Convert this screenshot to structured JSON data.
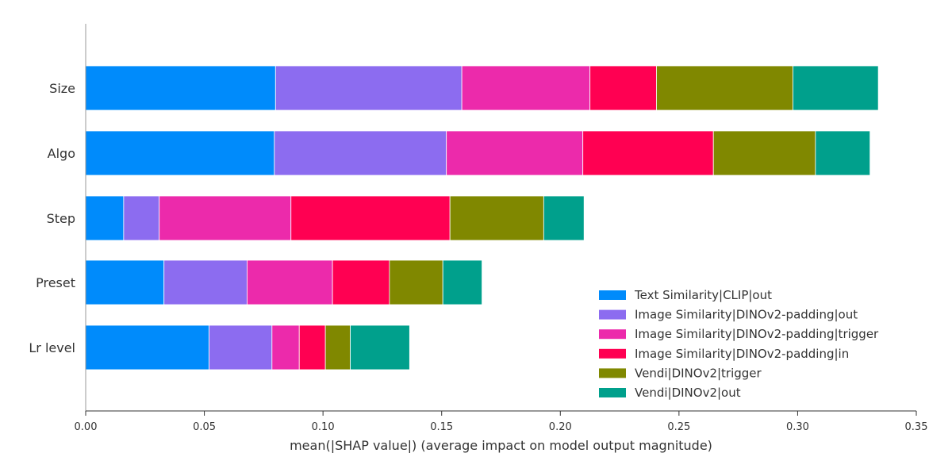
{
  "chart_data": {
    "type": "bar",
    "orientation": "horizontal",
    "stacked": true,
    "categories": [
      "Size",
      "Algo",
      "Step",
      "Preset",
      "Lr level"
    ],
    "series": [
      {
        "name": "Text Similarity|CLIP|out",
        "color": "#008bfb",
        "values": [
          0.08,
          0.0795,
          0.016,
          0.033,
          0.052
        ]
      },
      {
        "name": "Image Similarity|DINOv2-padding|out",
        "color": "#8c6cf0",
        "values": [
          0.0785,
          0.0725,
          0.015,
          0.035,
          0.0265
        ]
      },
      {
        "name": "Image Similarity|DINOv2-padding|trigger",
        "color": "#ec2aab",
        "values": [
          0.054,
          0.0575,
          0.0555,
          0.036,
          0.0115
        ]
      },
      {
        "name": "Image Similarity|DINOv2-padding|in",
        "color": "#ff0052",
        "values": [
          0.028,
          0.055,
          0.067,
          0.024,
          0.011
        ]
      },
      {
        "name": "Vendi|DINOv2|trigger",
        "color": "#808800",
        "values": [
          0.0575,
          0.043,
          0.0395,
          0.0225,
          0.0105
        ]
      },
      {
        "name": "Vendi|DINOv2|out",
        "color": "#00a08c",
        "values": [
          0.036,
          0.023,
          0.017,
          0.0165,
          0.025
        ]
      }
    ],
    "xlabel": "mean(|SHAP value|) (average impact on model output magnitude)",
    "ylabel": "",
    "xlim": [
      0.0,
      0.35
    ],
    "xticks": [
      "0.00",
      "0.05",
      "0.10",
      "0.15",
      "0.20",
      "0.25",
      "0.30",
      "0.35"
    ],
    "grid": false,
    "legend_position": "lower-right"
  }
}
